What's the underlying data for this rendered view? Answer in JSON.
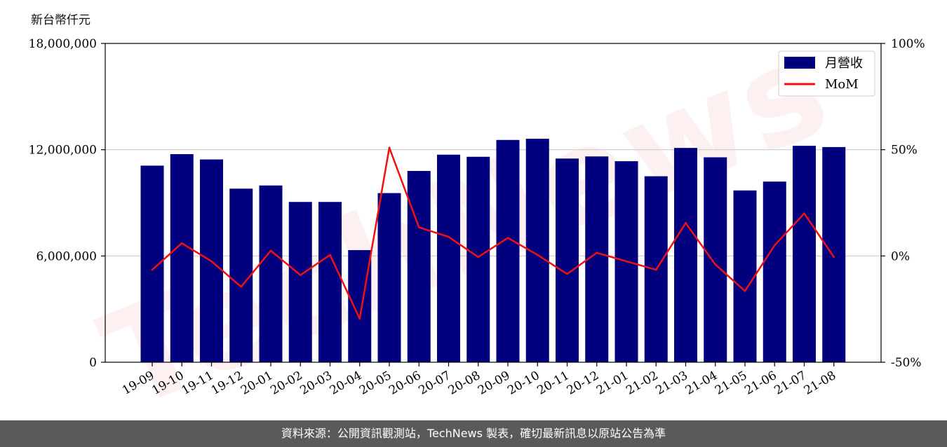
{
  "unit_label": "新台幣仟元",
  "watermark_text": "TechNews",
  "footer_text": "資料來源：公開資訊觀測站，TechNews 製表，確切最新訊息以原站公告為準",
  "colors": {
    "bar": "#00007f",
    "line": "#ee1111",
    "footer_bg": "#5a5a5a"
  },
  "chart_data": {
    "type": "bar",
    "categories": [
      "19-09",
      "19-10",
      "19-11",
      "19-12",
      "20-01",
      "20-02",
      "20-03",
      "20-04",
      "20-05",
      "20-06",
      "20-07",
      "20-08",
      "20-09",
      "20-10",
      "20-11",
      "20-12",
      "21-01",
      "21-02",
      "21-03",
      "21-04",
      "21-05",
      "21-06",
      "21-07",
      "21-08"
    ],
    "series": [
      {
        "name": "月營收",
        "axis": "left",
        "type": "bar",
        "values": [
          11100000,
          11750000,
          11450000,
          9800000,
          9980000,
          9050000,
          9050000,
          6330000,
          9550000,
          10800000,
          11720000,
          11600000,
          12550000,
          12620000,
          11500000,
          11620000,
          11350000,
          10500000,
          12100000,
          11570000,
          9700000,
          10200000,
          12220000,
          12150000
        ]
      },
      {
        "name": "MoM",
        "axis": "right",
        "type": "line",
        "values": [
          -6.5,
          6.0,
          -2.5,
          -14.5,
          2.5,
          -9.0,
          0.5,
          -29.5,
          51.0,
          13.5,
          9.0,
          -0.5,
          8.5,
          0.5,
          -8.5,
          1.5,
          -2.5,
          -6.5,
          15.5,
          -4.0,
          -16.5,
          5.0,
          20.0,
          -0.5
        ]
      }
    ],
    "y_left": {
      "range": [
        0,
        18000000
      ],
      "ticks": [
        "0",
        "6,000,000",
        "12,000,000",
        "18,000,000"
      ],
      "tick_values": [
        0,
        6000000,
        12000000,
        18000000
      ]
    },
    "y_right": {
      "range": [
        -50,
        100
      ],
      "ticks": [
        "-50%",
        "0%",
        "50%",
        "100%"
      ],
      "tick_values": [
        -50,
        0,
        50,
        100
      ]
    },
    "grid": "horizontal",
    "legend_position": "top-right"
  }
}
